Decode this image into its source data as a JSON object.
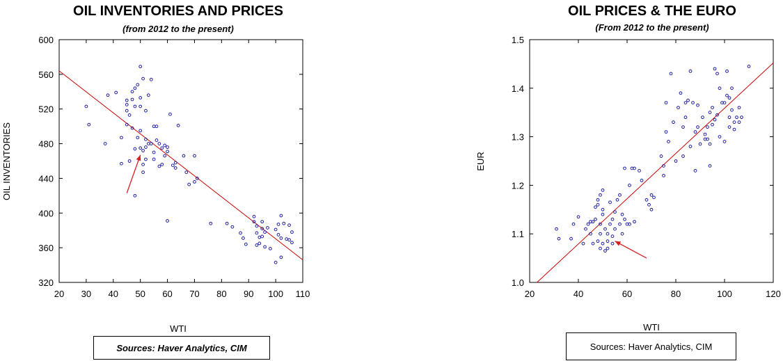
{
  "chart_data": [
    {
      "type": "scatter",
      "title": "OIL INVENTORIES AND PRICES",
      "subtitle": "(from 2012 to the present)",
      "xlabel": "WTI",
      "ylabel": "OIL INVENTORIES",
      "xlim": [
        20,
        110
      ],
      "ylim": [
        320,
        600
      ],
      "xticks": [
        "20",
        "30",
        "40",
        "50",
        "60",
        "70",
        "80",
        "90",
        "100",
        "110"
      ],
      "yticks": [
        "320",
        "360",
        "400",
        "440",
        "480",
        "520",
        "560",
        "600"
      ],
      "grid": false,
      "regression_line": {
        "start": [
          20,
          564
        ],
        "end": [
          110,
          346
        ],
        "color": "#cc0000"
      },
      "annotation_arrow": {
        "from": [
          45,
          423
        ],
        "to": [
          50,
          467
        ],
        "color": "#d82020"
      },
      "marker_color": "#1f1fa0",
      "points": [
        [
          30,
          523
        ],
        [
          31,
          502
        ],
        [
          37,
          480
        ],
        [
          38,
          536
        ],
        [
          41,
          539
        ],
        [
          43,
          487
        ],
        [
          43,
          457
        ],
        [
          45,
          518
        ],
        [
          45,
          530
        ],
        [
          45,
          525
        ],
        [
          45,
          502
        ],
        [
          46,
          513
        ],
        [
          47,
          540
        ],
        [
          47,
          531
        ],
        [
          47,
          498
        ],
        [
          48,
          544
        ],
        [
          48,
          523
        ],
        [
          48,
          474
        ],
        [
          49,
          548
        ],
        [
          50,
          569
        ],
        [
          50,
          533
        ],
        [
          50,
          523
        ],
        [
          50,
          495
        ],
        [
          50,
          475
        ],
        [
          51,
          555
        ],
        [
          51,
          472
        ],
        [
          52,
          518
        ],
        [
          52,
          485
        ],
        [
          52,
          476
        ],
        [
          53,
          536
        ],
        [
          53,
          480
        ],
        [
          54,
          554
        ],
        [
          55,
          470
        ],
        [
          55,
          500
        ],
        [
          56,
          484
        ],
        [
          57,
          480
        ],
        [
          58,
          475
        ],
        [
          59,
          478
        ],
        [
          60,
          471
        ],
        [
          61,
          514
        ],
        [
          62,
          455
        ],
        [
          63,
          452
        ],
        [
          64,
          501
        ],
        [
          66,
          466
        ],
        [
          67,
          447
        ],
        [
          68,
          433
        ],
        [
          70,
          466
        ],
        [
          70,
          436
        ],
        [
          71,
          440
        ],
        [
          57,
          454
        ],
        [
          58,
          456
        ],
        [
          59,
          466
        ],
        [
          60,
          391
        ],
        [
          55,
          462
        ],
        [
          46,
          460
        ],
        [
          48,
          420
        ],
        [
          51,
          447
        ],
        [
          51,
          456
        ],
        [
          76,
          388
        ],
        [
          82,
          388
        ],
        [
          84,
          384
        ],
        [
          87,
          377
        ],
        [
          88,
          371
        ],
        [
          89,
          364
        ],
        [
          92,
          396
        ],
        [
          92,
          390
        ],
        [
          93,
          385
        ],
        [
          93,
          377
        ],
        [
          93,
          363
        ],
        [
          94,
          372
        ],
        [
          94,
          365
        ],
        [
          95,
          390
        ],
        [
          95,
          382
        ],
        [
          95,
          373
        ],
        [
          96,
          361
        ],
        [
          96,
          378
        ],
        [
          97,
          383
        ],
        [
          98,
          359
        ],
        [
          100,
          343
        ],
        [
          100,
          381
        ],
        [
          101,
          387
        ],
        [
          101,
          375
        ],
        [
          102,
          371
        ],
        [
          102,
          397
        ],
        [
          102,
          349
        ],
        [
          103,
          388
        ],
        [
          104,
          370
        ],
        [
          105,
          386
        ],
        [
          105,
          369
        ],
        [
          106,
          366
        ],
        [
          106,
          378
        ],
        [
          60,
          476
        ],
        [
          49,
          487
        ],
        [
          56,
          500
        ],
        [
          63,
          458
        ],
        [
          54,
          480
        ],
        [
          52,
          462
        ]
      ]
    },
    {
      "type": "scatter",
      "title": "OIL PRICES & THE EURO",
      "subtitle": "(From 2012 to the present)",
      "xlabel": "WTI",
      "ylabel": "EUR",
      "xlim": [
        20,
        120
      ],
      "ylim": [
        1.0,
        1.5
      ],
      "xticks": [
        "20",
        "40",
        "60",
        "80",
        "100",
        "120"
      ],
      "yticks": [
        "1.0",
        "1.1",
        "1.2",
        "1.3",
        "1.4",
        "1.5"
      ],
      "grid": false,
      "regression_line": {
        "start": [
          23,
          1.0
        ],
        "end": [
          120,
          1.452
        ],
        "color": "#cc0000"
      },
      "annotation_arrow": {
        "from": [
          68,
          1.05
        ],
        "to": [
          55,
          1.085
        ],
        "color": "#d82020"
      },
      "marker_color": "#1f1fa0",
      "points": [
        [
          31,
          1.11
        ],
        [
          32,
          1.09
        ],
        [
          37,
          1.09
        ],
        [
          38,
          1.12
        ],
        [
          40,
          1.135
        ],
        [
          42,
          1.08
        ],
        [
          43,
          1.11
        ],
        [
          44,
          1.12
        ],
        [
          45,
          1.125
        ],
        [
          45,
          1.1
        ],
        [
          46,
          1.125
        ],
        [
          46,
          1.08
        ],
        [
          47,
          1.13
        ],
        [
          47,
          1.155
        ],
        [
          48,
          1.17
        ],
        [
          48,
          1.16
        ],
        [
          48,
          1.085
        ],
        [
          49,
          1.18
        ],
        [
          49,
          1.12
        ],
        [
          49,
          1.1
        ],
        [
          49,
          1.07
        ],
        [
          50,
          1.19
        ],
        [
          50,
          1.15
        ],
        [
          50,
          1.14
        ],
        [
          50,
          1.08
        ],
        [
          51,
          1.11
        ],
        [
          51,
          1.065
        ],
        [
          52,
          1.1
        ],
        [
          52,
          1.07
        ],
        [
          53,
          1.165
        ],
        [
          53,
          1.12
        ],
        [
          54,
          1.13
        ],
        [
          54,
          1.08
        ],
        [
          55,
          1.11
        ],
        [
          55,
          1.145
        ],
        [
          56,
          1.17
        ],
        [
          57,
          1.18
        ],
        [
          57,
          1.12
        ],
        [
          58,
          1.1
        ],
        [
          58,
          1.14
        ],
        [
          59,
          1.13
        ],
        [
          59,
          1.235
        ],
        [
          60,
          1.12
        ],
        [
          61,
          1.12
        ],
        [
          61,
          1.2
        ],
        [
          62,
          1.235
        ],
        [
          63,
          1.235
        ],
        [
          63,
          1.125
        ],
        [
          65,
          1.23
        ],
        [
          66,
          1.21
        ],
        [
          68,
          1.17
        ],
        [
          69,
          1.16
        ],
        [
          70,
          1.15
        ],
        [
          70,
          1.18
        ],
        [
          71,
          1.175
        ],
        [
          74,
          1.26
        ],
        [
          75,
          1.22
        ],
        [
          75,
          1.24
        ],
        [
          76,
          1.31
        ],
        [
          76,
          1.37
        ],
        [
          77,
          1.29
        ],
        [
          78,
          1.43
        ],
        [
          79,
          1.33
        ],
        [
          80,
          1.25
        ],
        [
          81,
          1.36
        ],
        [
          82,
          1.39
        ],
        [
          83,
          1.26
        ],
        [
          83,
          1.32
        ],
        [
          84,
          1.34
        ],
        [
          84,
          1.37
        ],
        [
          85,
          1.375
        ],
        [
          86,
          1.28
        ],
        [
          86,
          1.435
        ],
        [
          87,
          1.37
        ],
        [
          88,
          1.23
        ],
        [
          88,
          1.31
        ],
        [
          89,
          1.32
        ],
        [
          89,
          1.365
        ],
        [
          90,
          1.285
        ],
        [
          91,
          1.34
        ],
        [
          92,
          1.305
        ],
        [
          92,
          1.295
        ],
        [
          93,
          1.32
        ],
        [
          93,
          1.295
        ],
        [
          94,
          1.35
        ],
        [
          94,
          1.24
        ],
        [
          94,
          1.285
        ],
        [
          95,
          1.36
        ],
        [
          95,
          1.325
        ],
        [
          96,
          1.335
        ],
        [
          96,
          1.44
        ],
        [
          97,
          1.345
        ],
        [
          97,
          1.43
        ],
        [
          98,
          1.3
        ],
        [
          98,
          1.4
        ],
        [
          99,
          1.37
        ],
        [
          100,
          1.29
        ],
        [
          100,
          1.37
        ],
        [
          101,
          1.435
        ],
        [
          101,
          1.385
        ],
        [
          102,
          1.32
        ],
        [
          102,
          1.34
        ],
        [
          102,
          1.38
        ],
        [
          103,
          1.355
        ],
        [
          103,
          1.4
        ],
        [
          104,
          1.33
        ],
        [
          104,
          1.315
        ],
        [
          105,
          1.34
        ],
        [
          106,
          1.36
        ],
        [
          106,
          1.33
        ],
        [
          107,
          1.34
        ],
        [
          110,
          1.445
        ],
        [
          52,
          1.085
        ],
        [
          54,
          1.095
        ]
      ]
    }
  ],
  "sources": {
    "left": "Sources:  Haver Analytics, CIM",
    "right": "Sources:  Haver Analytics, CIM"
  }
}
